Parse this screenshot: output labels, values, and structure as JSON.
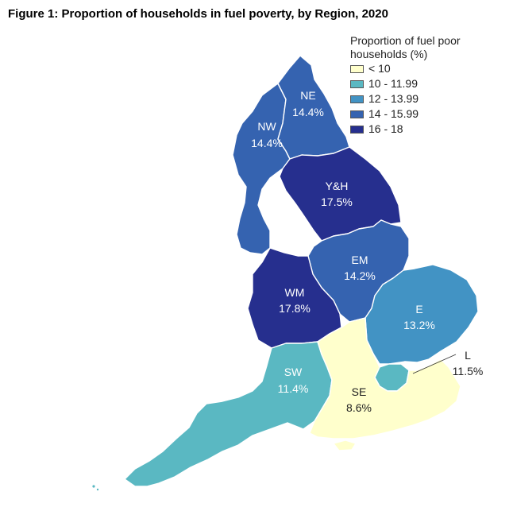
{
  "title": "Figure 1: Proportion of households in fuel poverty, by Region, 2020",
  "legend": {
    "title_line1": "Proportion of fuel poor",
    "title_line2": "households (%)",
    "items": [
      {
        "label": "< 10",
        "color": "#ffffcc"
      },
      {
        "label": "10 - 11.99",
        "color": "#5ab8c2"
      },
      {
        "label": "12 - 13.99",
        "color": "#4293c4"
      },
      {
        "label": "14 - 15.99",
        "color": "#3563b0"
      },
      {
        "label": "16 - 18",
        "color": "#262f8e"
      }
    ]
  },
  "regions": [
    {
      "code": "NE",
      "value": "14.4%",
      "color": "#3563b0"
    },
    {
      "code": "NW",
      "value": "14.4%",
      "color": "#3563b0"
    },
    {
      "code": "Y&H",
      "value": "17.5%",
      "color": "#262f8e"
    },
    {
      "code": "EM",
      "value": "14.2%",
      "color": "#3563b0"
    },
    {
      "code": "WM",
      "value": "17.8%",
      "color": "#262f8e"
    },
    {
      "code": "E",
      "value": "13.2%",
      "color": "#4293c4"
    },
    {
      "code": "L",
      "value": "11.5%",
      "color": "#5ab8c2"
    },
    {
      "code": "SW",
      "value": "11.4%",
      "color": "#5ab8c2"
    },
    {
      "code": "SE",
      "value": "8.6%",
      "color": "#ffffcc"
    }
  ]
}
